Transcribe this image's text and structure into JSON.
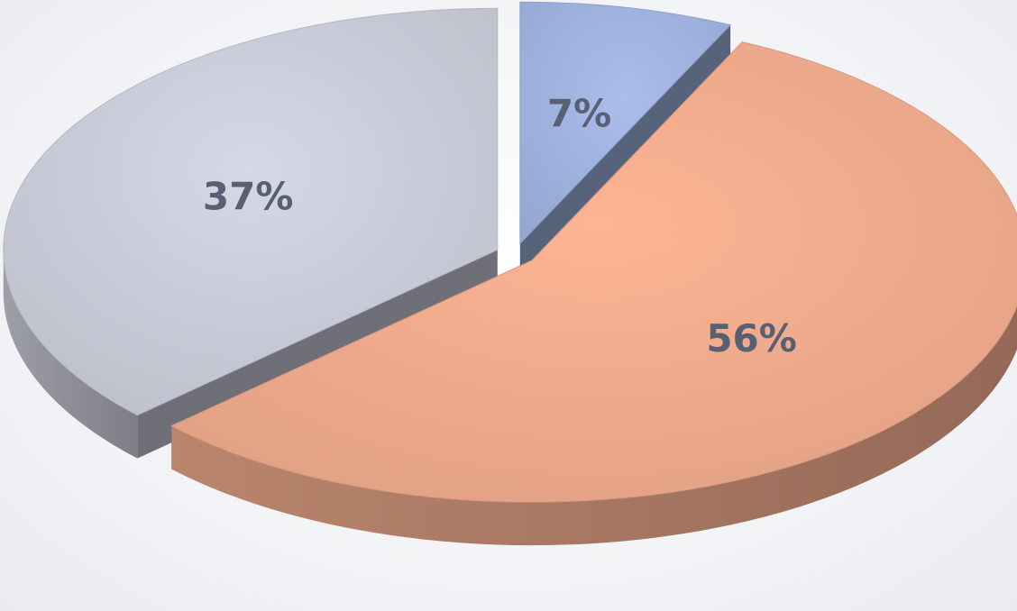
{
  "chart_data": {
    "type": "pie",
    "style": "3d-exploded",
    "title": "",
    "legend": "none",
    "slices": [
      {
        "value": 7,
        "label": "7%",
        "color": "#9fb3df"
      },
      {
        "value": 56,
        "label": "56%",
        "color": "#efaa8c"
      },
      {
        "value": 37,
        "label": "37%",
        "color": "#c9ccd8"
      }
    ]
  }
}
